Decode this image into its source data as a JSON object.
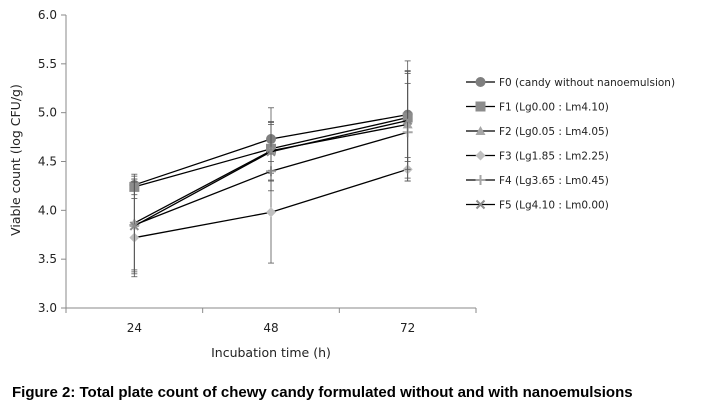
{
  "caption": "Figure 2: Total plate count of chewy candy formulated without and with nanoemulsions",
  "chart_data": {
    "type": "line",
    "xlabel": "Incubation time (h)",
    "ylabel": "Viable count (log CFU/g)",
    "categories": [
      "24",
      "48",
      "72"
    ],
    "ylim": [
      3.0,
      6.0
    ],
    "yticks": [
      "3.0",
      "3.5",
      "4.0",
      "4.5",
      "5.0",
      "5.5",
      "6.0"
    ],
    "grid": false,
    "legend_position": "right",
    "series": [
      {
        "name": "F0 (candy without nanoemulsion)",
        "marker": "circle",
        "color": "#7f7f7f",
        "values": [
          4.26,
          4.73,
          4.98
        ],
        "errors": [
          0.06,
          0.32,
          0.55
        ]
      },
      {
        "name": "F1 (Lg0.00 : Lm4.10)",
        "marker": "square",
        "color": "#8c8c8c",
        "values": [
          4.24,
          4.63,
          4.95
        ],
        "errors": [
          0.08,
          0.25,
          0.45
        ]
      },
      {
        "name": "F2 (Lg0.05 : Lm4.05)",
        "marker": "triangle",
        "color": "#a6a6a6",
        "values": [
          3.87,
          4.61,
          4.88
        ],
        "errors": [
          0.5,
          0.3,
          0.55
        ]
      },
      {
        "name": "F3 (Lg1.85 : Lm2.25)",
        "marker": "diamond",
        "color": "#bfbfbf",
        "values": [
          3.72,
          3.98,
          4.42
        ],
        "errors": [
          0.4,
          0.52,
          0.12
        ]
      },
      {
        "name": "F4 (Lg3.65 : Lm0.45)",
        "marker": "plus",
        "color": "#a6a6a6",
        "values": [
          3.85,
          4.4,
          4.8
        ],
        "errors": [
          0.5,
          0.2,
          0.5
        ]
      },
      {
        "name": "F5 (Lg4.10 : Lm0.00)",
        "marker": "x",
        "color": "#8c8c8c",
        "values": [
          3.84,
          4.6,
          4.92
        ],
        "errors": [
          0.45,
          0.3,
          0.5
        ]
      }
    ]
  }
}
